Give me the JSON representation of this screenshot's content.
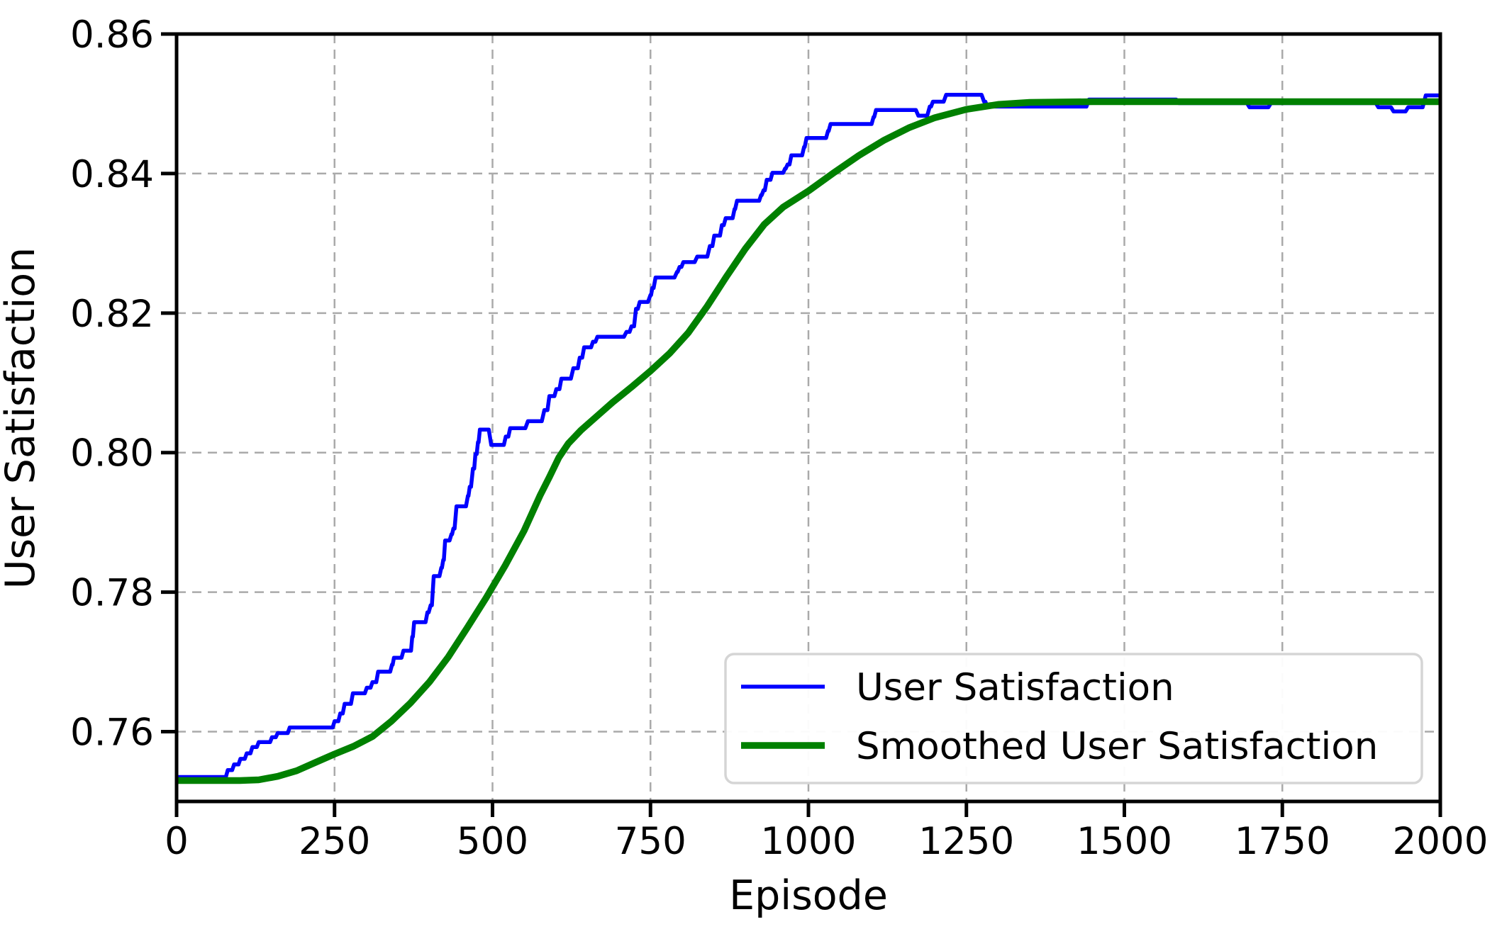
{
  "chart_data": {
    "type": "line",
    "title": "",
    "xlabel": "Episode",
    "ylabel": "User Satisfaction",
    "xlim": [
      0,
      2000
    ],
    "ylim": [
      0.75,
      0.86
    ],
    "xticks": [
      0,
      250,
      500,
      750,
      1000,
      1250,
      1500,
      1750,
      2000
    ],
    "yticks": [
      0.76,
      0.78,
      0.8,
      0.82,
      0.84,
      0.86
    ],
    "grid": true,
    "grid_style": "dashed",
    "legend_position": "lower right",
    "series": [
      {
        "name": "User Satisfaction",
        "color": "#0000ff",
        "linewidth": 5.5,
        "points": [
          [
            0,
            0.7535
          ],
          [
            78,
            0.7535
          ],
          [
            81,
            0.7545
          ],
          [
            88,
            0.7545
          ],
          [
            91,
            0.7553
          ],
          [
            98,
            0.7553
          ],
          [
            101,
            0.7561
          ],
          [
            108,
            0.7561
          ],
          [
            111,
            0.7569
          ],
          [
            117,
            0.7569
          ],
          [
            120,
            0.7578
          ],
          [
            127,
            0.7578
          ],
          [
            130,
            0.7585
          ],
          [
            148,
            0.7585
          ],
          [
            151,
            0.7592
          ],
          [
            157,
            0.7592
          ],
          [
            160,
            0.7598
          ],
          [
            176,
            0.7598
          ],
          [
            179,
            0.7606
          ],
          [
            247,
            0.7606
          ],
          [
            250,
            0.7615
          ],
          [
            256,
            0.7615
          ],
          [
            259,
            0.7626
          ],
          [
            263,
            0.7626
          ],
          [
            266,
            0.764
          ],
          [
            276,
            0.764
          ],
          [
            279,
            0.7655
          ],
          [
            298,
            0.7655
          ],
          [
            301,
            0.7663
          ],
          [
            307,
            0.7663
          ],
          [
            310,
            0.7671
          ],
          [
            316,
            0.7671
          ],
          [
            319,
            0.7686
          ],
          [
            338,
            0.7686
          ],
          [
            341,
            0.7696
          ],
          [
            342,
            0.7696
          ],
          [
            344,
            0.7706
          ],
          [
            356,
            0.7706
          ],
          [
            359,
            0.7716
          ],
          [
            371,
            0.7716
          ],
          [
            373,
            0.7736
          ],
          [
            374,
            0.7736
          ],
          [
            376,
            0.7757
          ],
          [
            394,
            0.7757
          ],
          [
            397,
            0.7771
          ],
          [
            399,
            0.7771
          ],
          [
            402,
            0.7781
          ],
          [
            404,
            0.7781
          ],
          [
            407,
            0.7823
          ],
          [
            416,
            0.7823
          ],
          [
            419,
            0.7835
          ],
          [
            420,
            0.7835
          ],
          [
            422,
            0.7846
          ],
          [
            423,
            0.7846
          ],
          [
            425,
            0.7874
          ],
          [
            432,
            0.7874
          ],
          [
            435,
            0.7883
          ],
          [
            436,
            0.7883
          ],
          [
            438,
            0.7891
          ],
          [
            440,
            0.7891
          ],
          [
            443,
            0.7923
          ],
          [
            458,
            0.7923
          ],
          [
            461,
            0.7938
          ],
          [
            462,
            0.7938
          ],
          [
            464,
            0.7951
          ],
          [
            466,
            0.7951
          ],
          [
            469,
            0.7977
          ],
          [
            471,
            0.7977
          ],
          [
            473,
            0.7998
          ],
          [
            475,
            0.7998
          ],
          [
            477,
            0.8015
          ],
          [
            478,
            0.8015
          ],
          [
            480,
            0.8033
          ],
          [
            494,
            0.8033
          ],
          [
            498,
            0.8011
          ],
          [
            518,
            0.8011
          ],
          [
            521,
            0.8023
          ],
          [
            525,
            0.8023
          ],
          [
            528,
            0.8035
          ],
          [
            552,
            0.8035
          ],
          [
            556,
            0.8045
          ],
          [
            578,
            0.8045
          ],
          [
            582,
            0.8061
          ],
          [
            587,
            0.8061
          ],
          [
            590,
            0.8081
          ],
          [
            598,
            0.8081
          ],
          [
            601,
            0.8091
          ],
          [
            606,
            0.8091
          ],
          [
            609,
            0.8106
          ],
          [
            624,
            0.8106
          ],
          [
            628,
            0.8121
          ],
          [
            635,
            0.8121
          ],
          [
            638,
            0.8136
          ],
          [
            642,
            0.8136
          ],
          [
            645,
            0.8151
          ],
          [
            656,
            0.8151
          ],
          [
            659,
            0.8159
          ],
          [
            663,
            0.8159
          ],
          [
            666,
            0.8166
          ],
          [
            708,
            0.8166
          ],
          [
            712,
            0.8173
          ],
          [
            717,
            0.8173
          ],
          [
            720,
            0.8181
          ],
          [
            724,
            0.8181
          ],
          [
            727,
            0.8206
          ],
          [
            730,
            0.8206
          ],
          [
            733,
            0.8216
          ],
          [
            746,
            0.8216
          ],
          [
            750,
            0.8226
          ],
          [
            751,
            0.8226
          ],
          [
            753,
            0.8236
          ],
          [
            755,
            0.8236
          ],
          [
            758,
            0.8251
          ],
          [
            788,
            0.8251
          ],
          [
            792,
            0.8259
          ],
          [
            793,
            0.8259
          ],
          [
            796,
            0.8266
          ],
          [
            799,
            0.8266
          ],
          [
            802,
            0.8273
          ],
          [
            820,
            0.8273
          ],
          [
            824,
            0.8281
          ],
          [
            840,
            0.8281
          ],
          [
            844,
            0.8296
          ],
          [
            848,
            0.8296
          ],
          [
            851,
            0.8311
          ],
          [
            860,
            0.8311
          ],
          [
            863,
            0.8326
          ],
          [
            866,
            0.8326
          ],
          [
            869,
            0.8336
          ],
          [
            880,
            0.8336
          ],
          [
            883,
            0.8349
          ],
          [
            884,
            0.8349
          ],
          [
            887,
            0.8361
          ],
          [
            922,
            0.8361
          ],
          [
            925,
            0.8369
          ],
          [
            926,
            0.8369
          ],
          [
            929,
            0.8376
          ],
          [
            931,
            0.8376
          ],
          [
            934,
            0.8391
          ],
          [
            940,
            0.8391
          ],
          [
            943,
            0.8401
          ],
          [
            960,
            0.8401
          ],
          [
            963,
            0.8407
          ],
          [
            964,
            0.8407
          ],
          [
            967,
            0.8413
          ],
          [
            970,
            0.8413
          ],
          [
            973,
            0.8426
          ],
          [
            990,
            0.8426
          ],
          [
            993,
            0.8438
          ],
          [
            994,
            0.8438
          ],
          [
            997,
            0.8451
          ],
          [
            1028,
            0.8451
          ],
          [
            1031,
            0.8461
          ],
          [
            1032,
            0.8461
          ],
          [
            1035,
            0.8471
          ],
          [
            1100,
            0.8471
          ],
          [
            1103,
            0.8481
          ],
          [
            1104,
            0.8481
          ],
          [
            1107,
            0.8491
          ],
          [
            1170,
            0.8491
          ],
          [
            1174,
            0.8483
          ],
          [
            1188,
            0.8483
          ],
          [
            1192,
            0.8496
          ],
          [
            1194,
            0.8496
          ],
          [
            1197,
            0.8503
          ],
          [
            1214,
            0.8503
          ],
          [
            1218,
            0.8513
          ],
          [
            1274,
            0.8513
          ],
          [
            1278,
            0.8503
          ],
          [
            1280,
            0.8503
          ],
          [
            1283,
            0.8496
          ],
          [
            1440,
            0.8496
          ],
          [
            1444,
            0.8506
          ],
          [
            1582,
            0.8506
          ],
          [
            1586,
            0.8501
          ],
          [
            1694,
            0.8501
          ],
          [
            1698,
            0.8495
          ],
          [
            1728,
            0.8495
          ],
          [
            1732,
            0.8501
          ],
          [
            1898,
            0.8501
          ],
          [
            1902,
            0.8495
          ],
          [
            1922,
            0.8495
          ],
          [
            1926,
            0.8489
          ],
          [
            1945,
            0.8489
          ],
          [
            1949,
            0.8495
          ],
          [
            1972,
            0.8495
          ],
          [
            1977,
            0.8512
          ],
          [
            2000,
            0.8512
          ]
        ]
      },
      {
        "name": "Smoothed User Satisfaction",
        "color": "#008000",
        "linewidth": 9.5,
        "points": [
          [
            0,
            0.753
          ],
          [
            100,
            0.753
          ],
          [
            130,
            0.7531
          ],
          [
            160,
            0.7536
          ],
          [
            190,
            0.7544
          ],
          [
            220,
            0.7556
          ],
          [
            250,
            0.7568
          ],
          [
            280,
            0.7579
          ],
          [
            310,
            0.7593
          ],
          [
            340,
            0.7615
          ],
          [
            370,
            0.7641
          ],
          [
            400,
            0.7671
          ],
          [
            430,
            0.7707
          ],
          [
            460,
            0.7749
          ],
          [
            490,
            0.7792
          ],
          [
            520,
            0.7838
          ],
          [
            550,
            0.7888
          ],
          [
            575,
            0.7938
          ],
          [
            590,
            0.7965
          ],
          [
            605,
            0.7993
          ],
          [
            620,
            0.8013
          ],
          [
            640,
            0.8032
          ],
          [
            665,
            0.8052
          ],
          [
            690,
            0.8072
          ],
          [
            720,
            0.8094
          ],
          [
            750,
            0.8117
          ],
          [
            780,
            0.8142
          ],
          [
            810,
            0.8172
          ],
          [
            840,
            0.821
          ],
          [
            870,
            0.8252
          ],
          [
            900,
            0.8292
          ],
          [
            930,
            0.8327
          ],
          [
            960,
            0.8352
          ],
          [
            1000,
            0.8375
          ],
          [
            1040,
            0.8401
          ],
          [
            1080,
            0.8426
          ],
          [
            1120,
            0.8448
          ],
          [
            1160,
            0.8466
          ],
          [
            1200,
            0.848
          ],
          [
            1250,
            0.8492
          ],
          [
            1300,
            0.8499
          ],
          [
            1350,
            0.8502
          ],
          [
            1450,
            0.8503
          ],
          [
            1600,
            0.8503
          ],
          [
            1800,
            0.8503
          ],
          [
            2000,
            0.8503
          ]
        ]
      }
    ]
  },
  "style": {
    "grid_color": "#aaaaaa",
    "spine_color": "#000000",
    "background": "#ffffff",
    "legend_border_color": "#d5d5d5",
    "legend_fill": "rgba(255,255,255,0.95)"
  }
}
